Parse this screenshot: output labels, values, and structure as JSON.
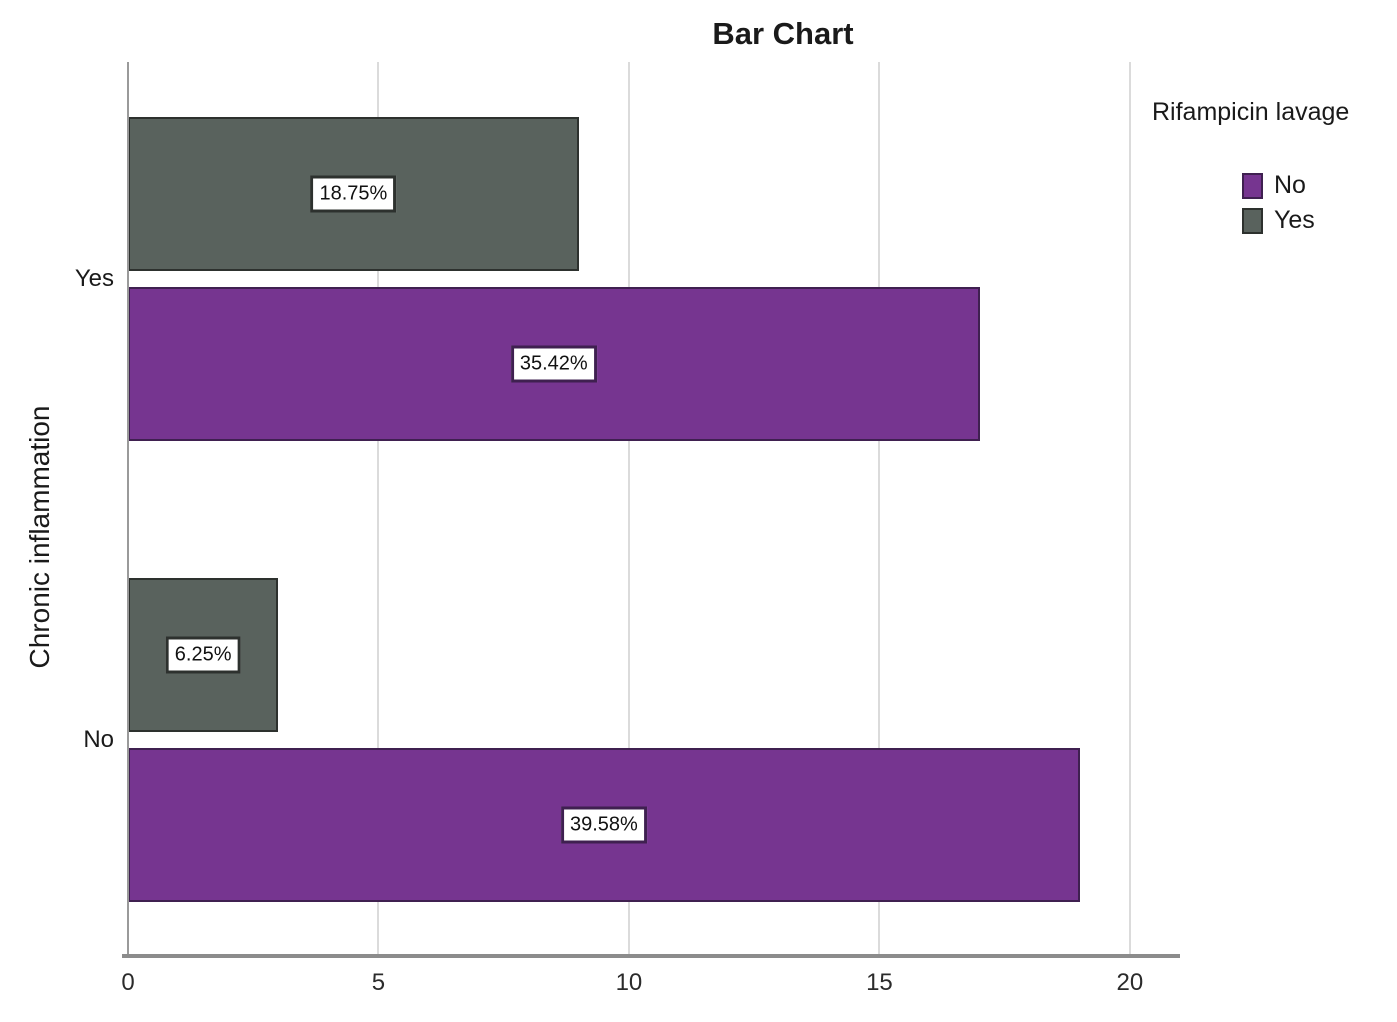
{
  "chart_data": {
    "type": "bar",
    "orientation": "horizontal",
    "title": "Bar Chart",
    "xlabel": "",
    "ylabel": "Chronic inflammation",
    "categories": [
      "Yes",
      "No"
    ],
    "x_ticks": [
      0,
      5,
      10,
      15,
      20
    ],
    "xlim": [
      0,
      21
    ],
    "grid": true,
    "legend": {
      "title": "Rifampicin lavage",
      "position": "right",
      "entries": [
        {
          "label": "No",
          "color": "#763590",
          "border": "#3f2050"
        },
        {
          "label": "Yes",
          "color": "#59625d",
          "border": "#2d312e"
        }
      ]
    },
    "series": [
      {
        "name": "No",
        "color": "#763590",
        "border": "#3f2050",
        "values": [
          17,
          19
        ],
        "value_labels": [
          "35.42%",
          "39.58%"
        ]
      },
      {
        "name": "Yes",
        "color": "#59625d",
        "border": "#2d312e",
        "values": [
          9,
          3
        ],
        "value_labels": [
          "18.75%",
          "6.25%"
        ]
      }
    ],
    "bar_draw_order": [
      "Yes",
      "No"
    ],
    "colors": {
      "gridline": "#dbdbdb",
      "axis": "#8c8c8c",
      "text": "#1a1a1a",
      "value_label_bg": "#ffffff"
    }
  }
}
